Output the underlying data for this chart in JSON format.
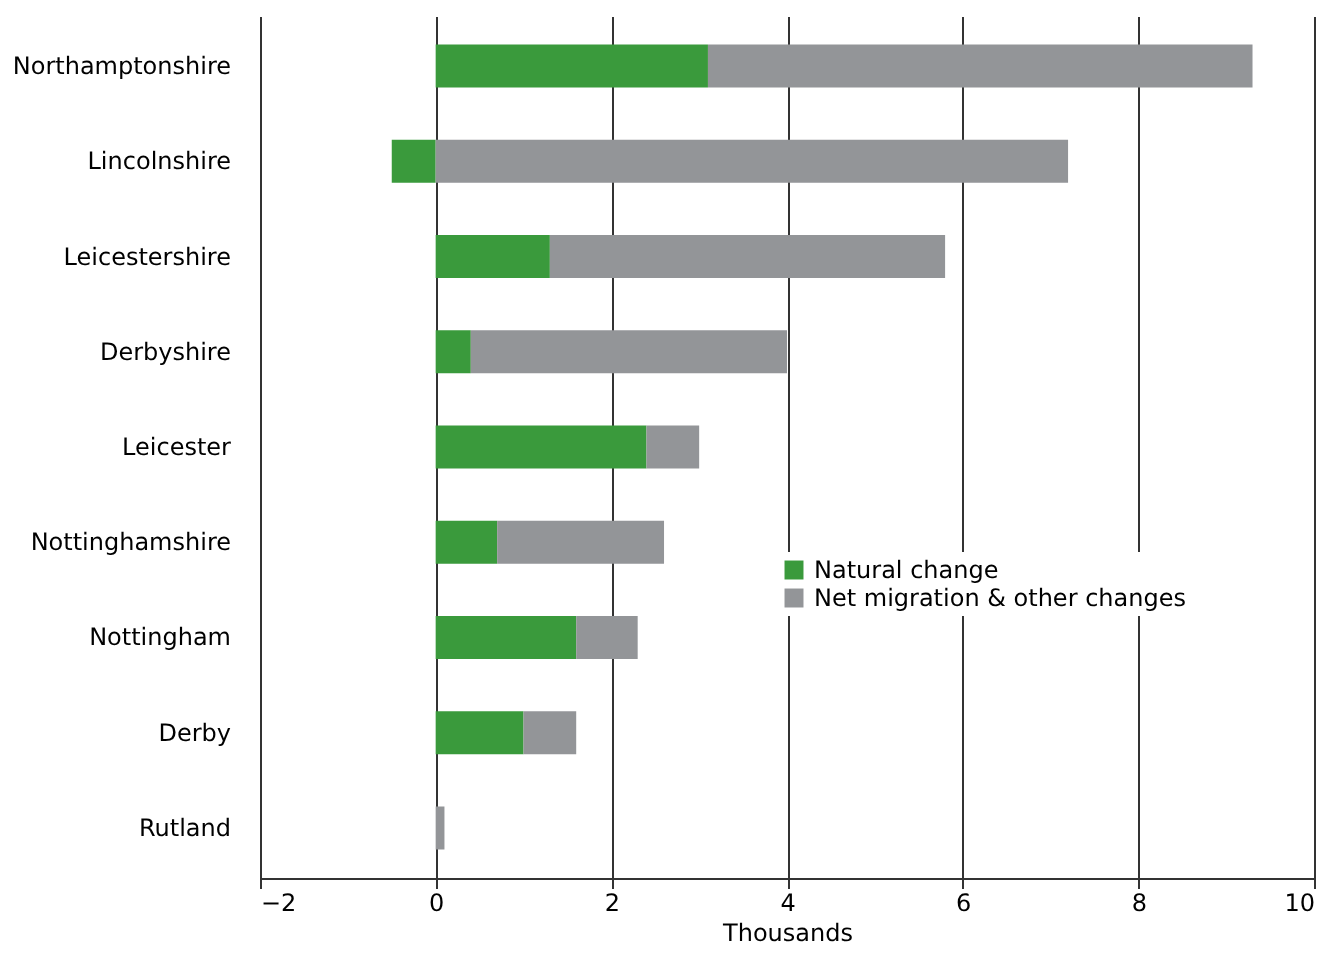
{
  "chart_data": {
    "type": "bar",
    "orientation": "horizontal",
    "stacked": true,
    "categories": [
      "Northamptonshire",
      "Lincolnshire",
      "Leicestershire",
      "Derbyshire",
      "Leicester",
      "Nottinghamshire",
      "Nottingham",
      "Derby",
      "Rutland"
    ],
    "series": [
      {
        "name": "Natural change",
        "color": "#3a9a3c",
        "values": [
          3.1,
          -0.5,
          1.3,
          0.4,
          2.4,
          0.7,
          1.6,
          1.0,
          0
        ]
      },
      {
        "name": "Net migration & other changes",
        "color": "#939598",
        "values": [
          6.2,
          7.2,
          4.5,
          3.6,
          0.6,
          1.9,
          0.7,
          0.6,
          0.1
        ]
      }
    ],
    "xlabel": "Thousands",
    "xlim": [
      -2,
      10
    ],
    "xticks": [
      {
        "value": -2,
        "label": "−2"
      },
      0,
      2,
      4,
      6,
      8,
      10
    ],
    "grid": "x",
    "legend": "right"
  }
}
